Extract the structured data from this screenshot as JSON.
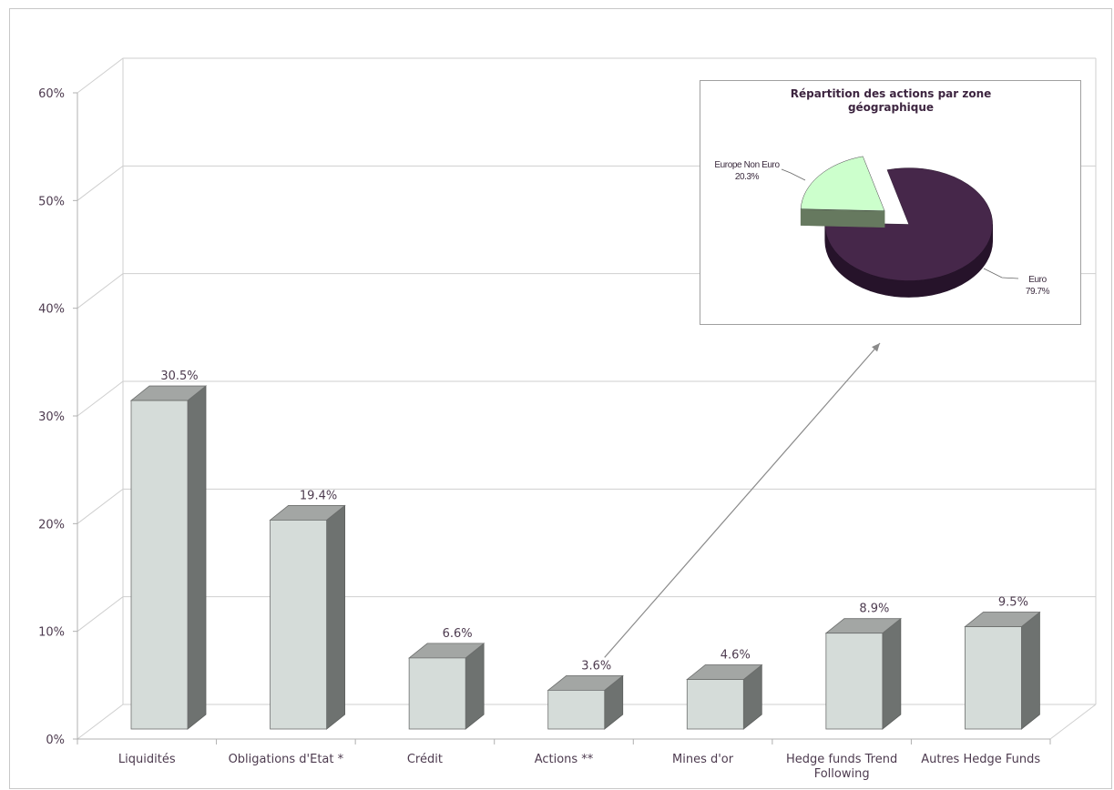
{
  "chart_data": [
    {
      "type": "bar",
      "title": "",
      "xlabel": "",
      "ylabel": "",
      "categories": [
        "Liquidités",
        "Obligations d'Etat *",
        "Crédit",
        "Actions **",
        "Mines d'or",
        "Hedge funds Trend Following",
        "Autres Hedge Funds"
      ],
      "category_lines": [
        [
          "Liquidités"
        ],
        [
          "Obligations d'Etat *"
        ],
        [
          "Crédit"
        ],
        [
          "Actions **"
        ],
        [
          "Mines d'or"
        ],
        [
          "Hedge funds Trend",
          "Following"
        ],
        [
          "Autres Hedge Funds"
        ]
      ],
      "values": [
        30.5,
        19.4,
        6.6,
        3.6,
        4.6,
        8.9,
        9.5
      ],
      "data_labels": [
        "30.5%",
        "19.4%",
        "6.6%",
        "3.6%",
        "4.6%",
        "8.9%",
        "9.5%"
      ],
      "ylim": [
        0,
        60
      ],
      "yticks": [
        0,
        10,
        20,
        30,
        40,
        50,
        60
      ],
      "ytick_labels": [
        "0%",
        "10%",
        "20%",
        "30%",
        "40%",
        "50%",
        "60%"
      ],
      "grid": true,
      "style": "3d-column",
      "colors": {
        "front": "#d5dcd9",
        "top": "#a3a6a4",
        "side": "#6e7270"
      }
    },
    {
      "type": "pie",
      "title": "Répartition des actions par zone géographique",
      "title_lines": [
        "Répartition des actions par zone",
        "géographique"
      ],
      "labels": [
        "Euro",
        "Europe Non Euro"
      ],
      "values": [
        79.7,
        20.3
      ],
      "data_labels": [
        "79.7%",
        "20.3%"
      ],
      "exploded": true,
      "style": "3d-pie",
      "colors": [
        "#46274a",
        "#ccffcc"
      ],
      "side_colors": [
        "#26132a",
        "#66795f"
      ]
    }
  ]
}
